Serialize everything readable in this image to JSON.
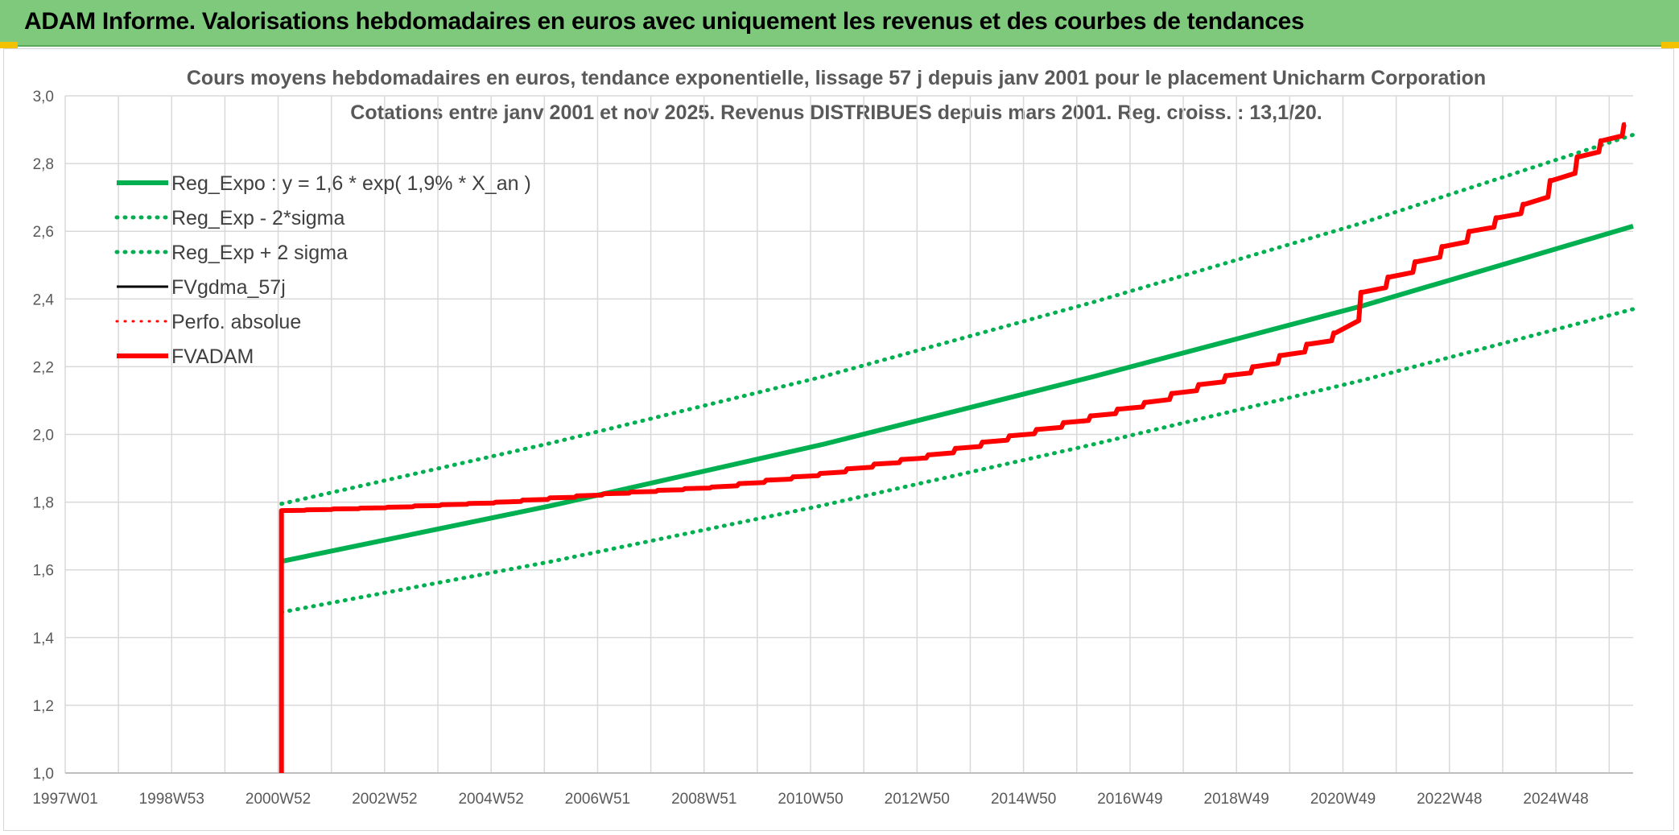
{
  "banner": {
    "title": "ADAM Informe. Valorisations hebdomadaires en euros avec uniquement les revenus et des courbes de tendances",
    "background": "#7ec97c",
    "corner_color": "#f2c200"
  },
  "chart_data": {
    "type": "line",
    "title": "Cours moyens hebdomadaires en euros, tendance exponentielle, lissage 57 j depuis janv 2001 pour le placement Unicharm Corporation",
    "subtitle": "Cotations entre janv 2001 et nov 2025. Revenus DISTRIBUES depuis mars 2001. Reg. croiss. : 13,1/20.",
    "xlabel": "",
    "ylabel": "",
    "x_ticks": [
      "1997W01",
      "1998W53",
      "2000W52",
      "2002W52",
      "2004W52",
      "2006W51",
      "2008W51",
      "2010W50",
      "2012W50",
      "2014W50",
      "2016W49",
      "2018W49",
      "2020W49",
      "2022W48",
      "2024W48"
    ],
    "y_ticks": [
      "1,0",
      "1,2",
      "1,4",
      "1,6",
      "1,8",
      "2,0",
      "2,2",
      "2,4",
      "2,6",
      "2,8",
      "3,0"
    ],
    "ylim": [
      1.0,
      3.0
    ],
    "xlim_years": [
      1997.0,
      2026.0
    ],
    "grid": true,
    "legend_position": "top-left",
    "series": [
      {
        "name": "Reg_Expo : y = 1,6 * exp( 1,9% *  X_an )",
        "color": "#00b050",
        "style": "solid",
        "width": 6,
        "x": [
          "2001W01",
          "2006W01",
          "2011W01",
          "2016W01",
          "2021W01",
          "2026W01"
        ],
        "y": [
          1.625,
          1.79,
          1.97,
          2.17,
          2.38,
          2.615
        ]
      },
      {
        "name": "Reg_Exp - 2*sigma",
        "color": "#00b050",
        "style": "dotted",
        "width": 5,
        "x": [
          "2001W01",
          "2006W01",
          "2011W01",
          "2016W01",
          "2021W01",
          "2026W01"
        ],
        "y": [
          1.475,
          1.625,
          1.79,
          1.97,
          2.16,
          2.37
        ]
      },
      {
        "name": "Reg_Exp + 2 sigma",
        "color": "#00b050",
        "style": "dotted",
        "width": 5,
        "x": [
          "2001W01",
          "2006W01",
          "2011W01",
          "2016W01",
          "2021W01",
          "2026W01"
        ],
        "y": [
          1.795,
          1.975,
          2.17,
          2.39,
          2.625,
          2.885
        ]
      },
      {
        "name": "FVgdma_57j",
        "color": "#000000",
        "style": "solid",
        "width": 3,
        "x": [
          "2001W01",
          "2003W01",
          "2005W01",
          "2007W01",
          "2009W01",
          "2011W01",
          "2013W01",
          "2015W01",
          "2017W01",
          "2019W01",
          "2020W27",
          "2021W01",
          "2022W01",
          "2023W01",
          "2024W01",
          "2025W01",
          "2025W46"
        ],
        "y": [
          1.775,
          1.785,
          1.8,
          1.825,
          1.845,
          1.885,
          1.94,
          2.015,
          2.095,
          2.2,
          2.3,
          2.42,
          2.51,
          2.6,
          2.68,
          2.82,
          2.915
        ]
      },
      {
        "name": "Perfo. absolue",
        "color": "#ff0000",
        "style": "dotted",
        "width": 3,
        "x": [],
        "y": []
      },
      {
        "name": "FVADAM",
        "color": "#ff0000",
        "style": "solid",
        "width": 6,
        "x": [
          "2001W01",
          "2001W01",
          "2003W01",
          "2005W01",
          "2007W01",
          "2009W01",
          "2011W01",
          "2013W01",
          "2015W01",
          "2017W01",
          "2019W01",
          "2020W27",
          "2021W01",
          "2022W01",
          "2023W01",
          "2024W01",
          "2025W01",
          "2025W46"
        ],
        "y": [
          1.0,
          1.775,
          1.785,
          1.8,
          1.825,
          1.845,
          1.885,
          1.94,
          2.015,
          2.095,
          2.2,
          2.3,
          2.42,
          2.51,
          2.6,
          2.68,
          2.82,
          2.915
        ]
      }
    ]
  }
}
